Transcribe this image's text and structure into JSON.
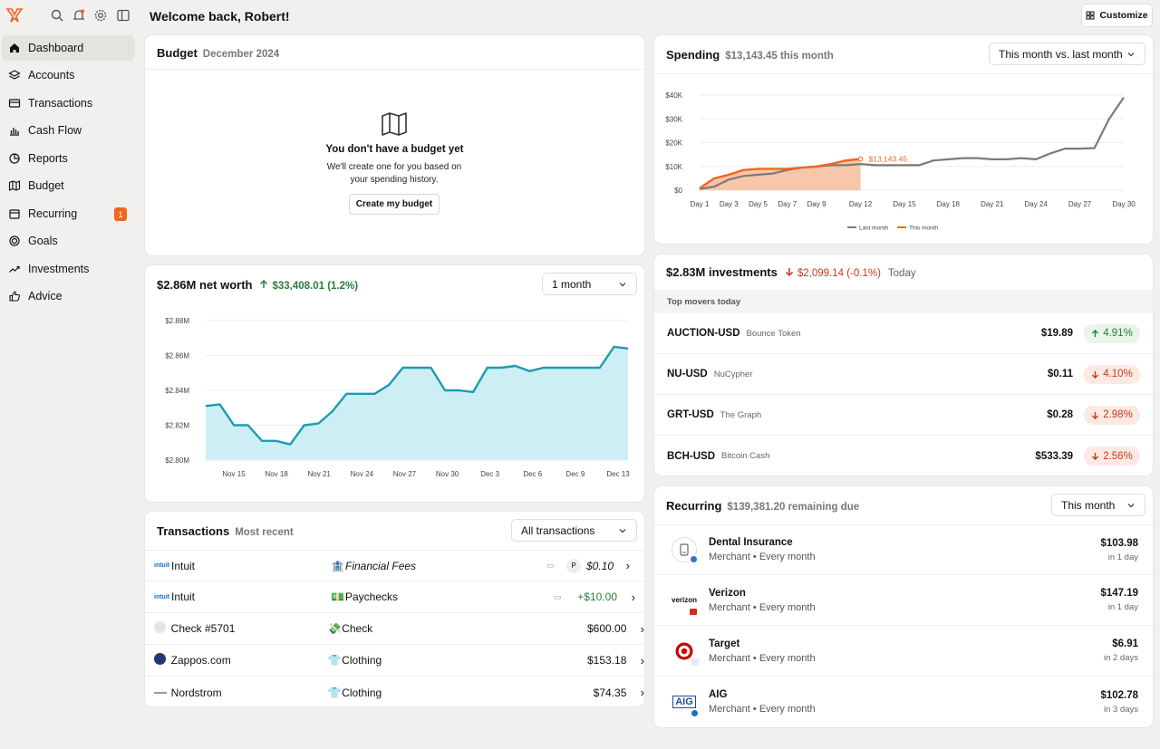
{
  "header": {
    "welcome": "Welcome back, Robert!",
    "customize_label": "Customize"
  },
  "sidebar": {
    "items": [
      {
        "label": "Dashboard",
        "icon": "home-icon"
      },
      {
        "label": "Accounts",
        "icon": "layers-icon"
      },
      {
        "label": "Transactions",
        "icon": "credit-card-icon"
      },
      {
        "label": "Cash Flow",
        "icon": "bar-chart-icon"
      },
      {
        "label": "Reports",
        "icon": "pie-chart-icon"
      },
      {
        "label": "Budget",
        "icon": "map-icon"
      },
      {
        "label": "Recurring",
        "icon": "calendar-icon",
        "badge": "1"
      },
      {
        "label": "Goals",
        "icon": "target-icon"
      },
      {
        "label": "Investments",
        "icon": "trend-icon"
      },
      {
        "label": "Advice",
        "icon": "thumbs-up-icon"
      }
    ]
  },
  "budget": {
    "title": "Budget",
    "subtitle": "December 2024",
    "empty_title": "You don't have a budget yet",
    "empty_body": "We'll create one for you based on your spending history.",
    "button": "Create my budget"
  },
  "networth": {
    "title": "$2.86M net worth",
    "change": "$33,408.01 (1.2%)",
    "range": "1 month",
    "chart_data": {
      "type": "area",
      "x_ticks": [
        "Nov 15",
        "Nov 18",
        "Nov 21",
        "Nov 24",
        "Nov 27",
        "Nov 30",
        "Dec 3",
        "Dec 6",
        "Dec 9",
        "Dec 13"
      ],
      "y_ticks": [
        "$2.80M",
        "$2.82M",
        "$2.84M",
        "$2.86M",
        "$2.88M"
      ],
      "ylim": [
        2.8,
        2.88
      ],
      "values": [
        2.831,
        2.832,
        2.82,
        2.82,
        2.811,
        2.811,
        2.809,
        2.82,
        2.821,
        2.828,
        2.838,
        2.838,
        2.838,
        2.843,
        2.853,
        2.853,
        2.853,
        2.84,
        2.84,
        2.839,
        2.853,
        2.853,
        2.854,
        2.851,
        2.853,
        2.853,
        2.853,
        2.853,
        2.853,
        2.865,
        2.864
      ],
      "color": "#1e9bb3"
    }
  },
  "transactions": {
    "title": "Transactions",
    "subtitle": "Most recent",
    "filter": "All transactions",
    "rows": [
      {
        "merchant": "Intuit",
        "category": "Financial Fees",
        "amount": "$0.10",
        "pending": "P"
      },
      {
        "merchant": "Intuit",
        "category": "Paychecks",
        "amount": "+$10.00"
      },
      {
        "merchant": "Check #5701",
        "category": "Check",
        "amount": "$600.00"
      },
      {
        "merchant": "Zappos.com",
        "category": "Clothing",
        "amount": "$153.18"
      },
      {
        "merchant": "Nordstrom",
        "category": "Clothing",
        "amount": "$74.35"
      }
    ]
  },
  "spending": {
    "title": "Spending",
    "subtitle": "$13,143.45 this month",
    "range": "This month vs. last month",
    "chart_data": {
      "type": "line",
      "x_ticks": [
        "Day 1",
        "Day 3",
        "Day 5",
        "Day 7",
        "Day 9",
        "Day 12",
        "Day 15",
        "Day 18",
        "Day 21",
        "Day 24",
        "Day 27",
        "Day 30"
      ],
      "y_ticks": [
        "$0",
        "$10K",
        "$20K",
        "$30K",
        "$40K"
      ],
      "ylim": [
        0,
        40000
      ],
      "series": [
        {
          "name": "Last month",
          "color": "#7a7a7a",
          "x": [
            1,
            2,
            3,
            4,
            5,
            6,
            7,
            8,
            9,
            10,
            11,
            12,
            13,
            14,
            15,
            16,
            17,
            18,
            19,
            20,
            21,
            22,
            23,
            24,
            25,
            26,
            27,
            28,
            29,
            30
          ],
          "values": [
            500,
            1500,
            4500,
            6000,
            6500,
            7000,
            8500,
            9500,
            10000,
            10500,
            10500,
            11000,
            10500,
            10500,
            10500,
            10500,
            12500,
            13000,
            13500,
            13500,
            13000,
            13000,
            13500,
            13000,
            15500,
            17500,
            17500,
            17700,
            30000,
            39000
          ]
        },
        {
          "name": "This month",
          "color": "#f26522",
          "x": [
            1,
            2,
            3,
            4,
            5,
            6,
            7,
            8,
            9,
            10,
            11,
            12
          ],
          "values": [
            800,
            5000,
            6500,
            8500,
            9000,
            9000,
            9000,
            9500,
            10000,
            11000,
            12500,
            13143
          ]
        }
      ],
      "annotation": "$13,143.45",
      "legend_labels": [
        "Last month",
        "This month"
      ]
    }
  },
  "investments": {
    "title": "$2.83M investments",
    "change": "$2,099.14 (-0.1%)",
    "period": "Today",
    "movers_header": "Top movers today",
    "rows": [
      {
        "symbol": "AUCTION-USD",
        "name": "Bounce Token",
        "price": "$19.89",
        "change": "4.91%",
        "dir": "up"
      },
      {
        "symbol": "NU-USD",
        "name": "NuCypher",
        "price": "$0.11",
        "change": "4.10%",
        "dir": "down"
      },
      {
        "symbol": "GRT-USD",
        "name": "The Graph",
        "price": "$0.28",
        "change": "2.98%",
        "dir": "down"
      },
      {
        "symbol": "BCH-USD",
        "name": "Bitcoin Cash",
        "price": "$533.39",
        "change": "2.56%",
        "dir": "down"
      }
    ]
  },
  "recurring": {
    "title": "Recurring",
    "subtitle": "$139,381.20 remaining due",
    "range": "This month",
    "rows": [
      {
        "name": "Dental Insurance",
        "detail": "Merchant • Every month",
        "amount": "$103.98",
        "due": "in 1 day"
      },
      {
        "name": "Verizon",
        "detail": "Merchant • Every month",
        "amount": "$147.19",
        "due": "in 1 day",
        "logo_text": "verizon"
      },
      {
        "name": "Target",
        "detail": "Merchant • Every month",
        "amount": "$6.91",
        "due": "in 2 days"
      },
      {
        "name": "AIG",
        "detail": "Merchant • Every month",
        "amount": "$102.78",
        "due": "in 3 days",
        "logo_text": "AIG"
      }
    ]
  }
}
